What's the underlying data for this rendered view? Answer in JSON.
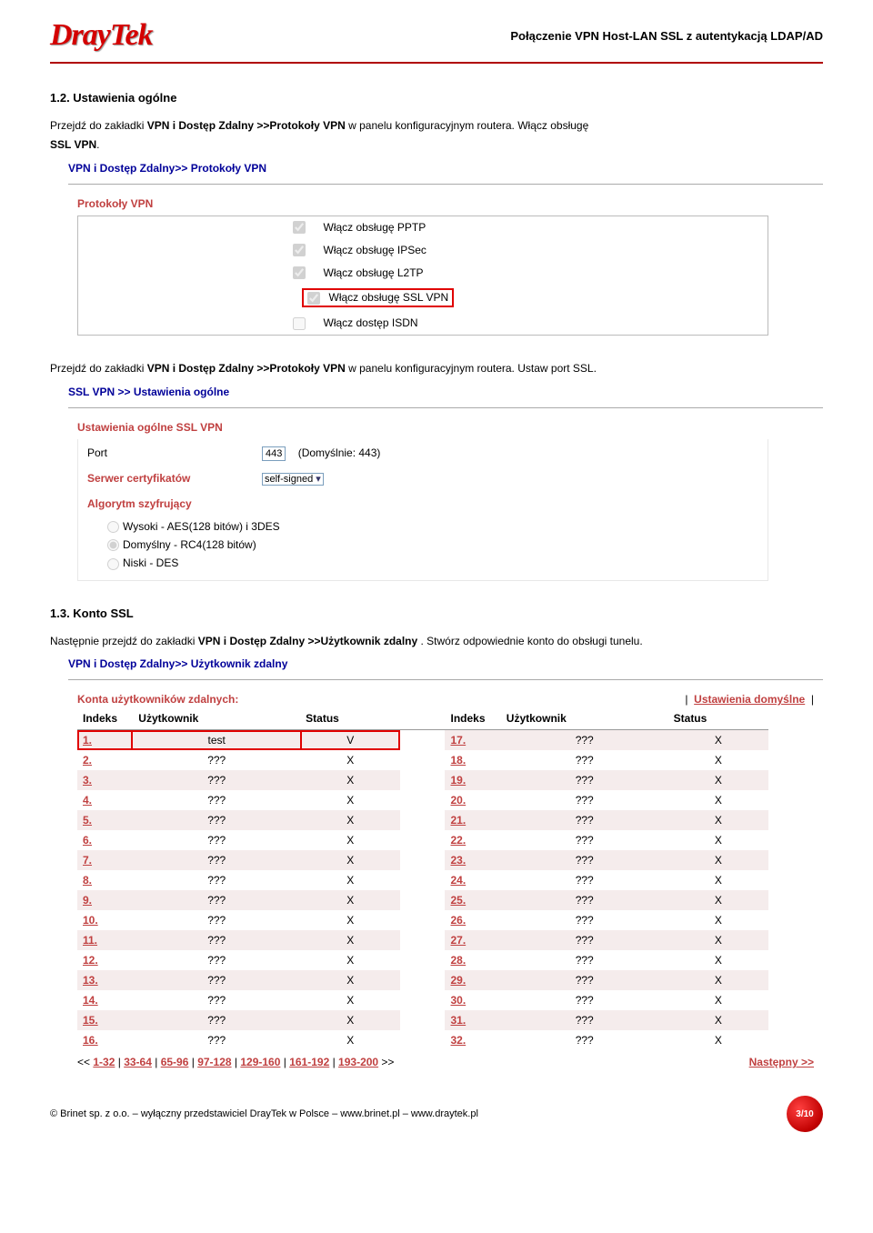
{
  "header": {
    "logo_text": "DrayTek",
    "doc_title": "Połączenie VPN Host-LAN SSL z autentykacją LDAP/AD"
  },
  "section12": {
    "title": "1.2. Ustawienia ogólne",
    "para1_before": "Przejdź do zakładki ",
    "para1_bold": "VPN i Dostęp Zdalny >>Protokoły VPN",
    "para1_after": " w panelu konfiguracyjnym routera. Włącz obsługę ",
    "para1_bold2": "SSL VPN",
    "para1_end": ".",
    "breadcrumb1": "VPN i Dostęp Zdalny>> Protokoły VPN",
    "panel_heading1": "Protokoły VPN",
    "protocols": [
      {
        "label": "Włącz obsługę PPTP",
        "checked": true
      },
      {
        "label": "Włącz obsługę IPSec",
        "checked": true
      },
      {
        "label": "Włącz obsługę L2TP",
        "checked": true
      },
      {
        "label": "Włącz obsługę SSL VPN",
        "checked": true,
        "highlight": true
      },
      {
        "label": "Włącz dostęp ISDN",
        "checked": false
      }
    ],
    "para2_before": "Przejdź do zakładki ",
    "para2_bold": "VPN i Dostęp Zdalny >>Protokoły VPN",
    "para2_after": " w panelu konfiguracyjnym routera. Ustaw port SSL.",
    "breadcrumb2": "SSL VPN >> Ustawienia ogólne",
    "panel_heading2": "Ustawienia ogólne SSL VPN",
    "ssl_port_label": "Port",
    "ssl_port_value": "443",
    "ssl_port_hint": "(Domyślnie: 443)",
    "cert_label": "Serwer certyfikatów",
    "cert_value": "self-signed",
    "algo_label": "Algorytm szyfrujący",
    "algo_options": [
      {
        "label": "Wysoki - AES(128 bitów) i 3DES",
        "checked": false
      },
      {
        "label": "Domyślny - RC4(128 bitów)",
        "checked": true
      },
      {
        "label": "Niski - DES",
        "checked": false
      }
    ]
  },
  "section13": {
    "title": "1.3. Konto SSL",
    "para_before": "Następnie przejdź do zakładki ",
    "para_bold": "VPN i Dostęp Zdalny >>Użytkownik zdalny",
    "para_after": ". Stwórz odpowiednie konto do obsługi tunelu.",
    "breadcrumb": "VPN i Dostęp Zdalny>> Użytkownik zdalny",
    "accounts_label": "Konta użytkowników zdalnych:",
    "defaults_link": "Ustawienia domyślne",
    "columns": {
      "idx": "Indeks",
      "user": "Użytkownik",
      "status": "Status"
    },
    "rows_left": [
      {
        "idx": "1.",
        "user": "test",
        "status": "V",
        "highlight": true
      },
      {
        "idx": "2.",
        "user": "???",
        "status": "X"
      },
      {
        "idx": "3.",
        "user": "???",
        "status": "X"
      },
      {
        "idx": "4.",
        "user": "???",
        "status": "X"
      },
      {
        "idx": "5.",
        "user": "???",
        "status": "X"
      },
      {
        "idx": "6.",
        "user": "???",
        "status": "X"
      },
      {
        "idx": "7.",
        "user": "???",
        "status": "X"
      },
      {
        "idx": "8.",
        "user": "???",
        "status": "X"
      },
      {
        "idx": "9.",
        "user": "???",
        "status": "X"
      },
      {
        "idx": "10.",
        "user": "???",
        "status": "X"
      },
      {
        "idx": "11.",
        "user": "???",
        "status": "X"
      },
      {
        "idx": "12.",
        "user": "???",
        "status": "X"
      },
      {
        "idx": "13.",
        "user": "???",
        "status": "X"
      },
      {
        "idx": "14.",
        "user": "???",
        "status": "X"
      },
      {
        "idx": "15.",
        "user": "???",
        "status": "X"
      },
      {
        "idx": "16.",
        "user": "???",
        "status": "X"
      }
    ],
    "rows_right": [
      {
        "idx": "17.",
        "user": "???",
        "status": "X"
      },
      {
        "idx": "18.",
        "user": "???",
        "status": "X"
      },
      {
        "idx": "19.",
        "user": "???",
        "status": "X"
      },
      {
        "idx": "20.",
        "user": "???",
        "status": "X"
      },
      {
        "idx": "21.",
        "user": "???",
        "status": "X"
      },
      {
        "idx": "22.",
        "user": "???",
        "status": "X"
      },
      {
        "idx": "23.",
        "user": "???",
        "status": "X"
      },
      {
        "idx": "24.",
        "user": "???",
        "status": "X"
      },
      {
        "idx": "25.",
        "user": "???",
        "status": "X"
      },
      {
        "idx": "26.",
        "user": "???",
        "status": "X"
      },
      {
        "idx": "27.",
        "user": "???",
        "status": "X"
      },
      {
        "idx": "28.",
        "user": "???",
        "status": "X"
      },
      {
        "idx": "29.",
        "user": "???",
        "status": "X"
      },
      {
        "idx": "30.",
        "user": "???",
        "status": "X"
      },
      {
        "idx": "31.",
        "user": "???",
        "status": "X"
      },
      {
        "idx": "32.",
        "user": "???",
        "status": "X"
      }
    ],
    "pager_prefix": "<<",
    "pager_links": [
      "1-32",
      "33-64",
      "65-96",
      "97-128",
      "129-160",
      "161-192",
      "193-200"
    ],
    "pager_suffix": ">>",
    "pager_next": "Następny >>"
  },
  "footer": {
    "text": "© Brinet sp. z o.o. – wyłączny przedstawiciel DrayTek w Polsce – www.brinet.pl – www.draytek.pl",
    "page": "3/10"
  }
}
